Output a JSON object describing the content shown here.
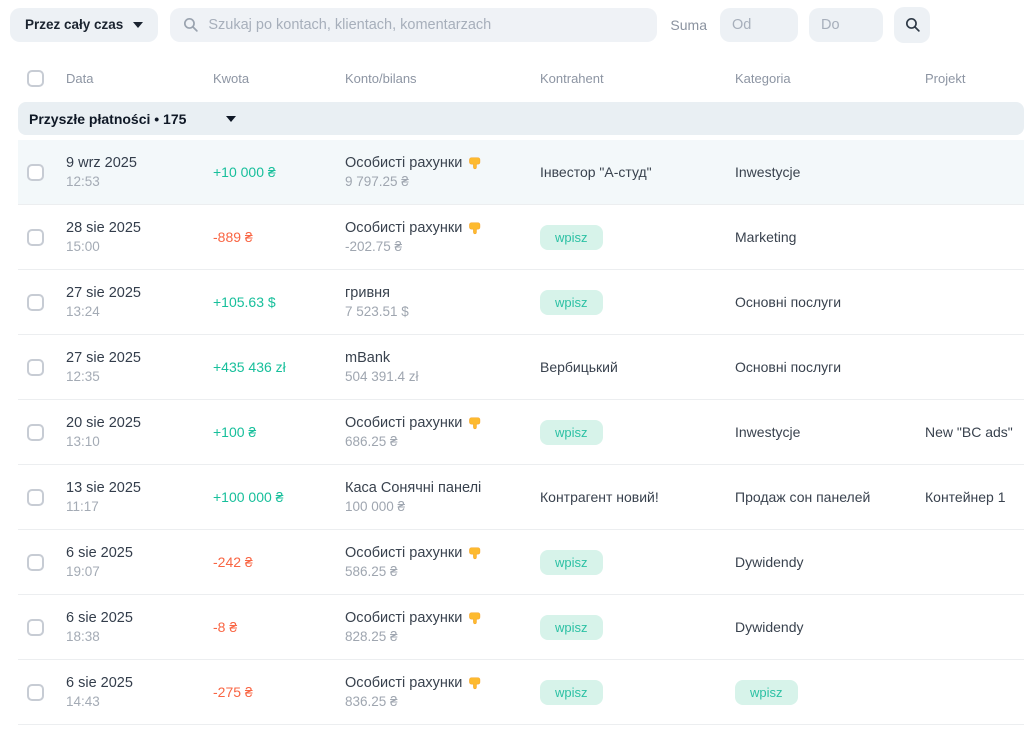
{
  "toolbar": {
    "period_button": "Przez cały czas",
    "search_placeholder": "Szukaj po kontach, klientach, komentarzach",
    "suma_label": "Suma",
    "od_placeholder": "Od",
    "do_placeholder": "Do"
  },
  "table": {
    "columns": [
      "Data",
      "Kwota",
      "Konto/bilans",
      "Kontrahent",
      "Kategoria",
      "Projekt"
    ],
    "group_header": "Przyszłe płatności • 175",
    "badge_label": "wpisz",
    "rows": [
      {
        "date": "9 wrz 2025",
        "time": "12:53",
        "amount": "+10 000 ₴",
        "sign": "pos",
        "account": "Особисті рахунки",
        "account_icon": "hand-pointing-down-icon",
        "balance": "9 797.25 ₴",
        "kontrahent": "Інвестор \"А-студ\"",
        "kategoria": "Inwestycje",
        "projekt": "",
        "highlight": true
      },
      {
        "date": "28 sie 2025",
        "time": "15:00",
        "amount": "-889 ₴",
        "sign": "neg",
        "account": "Особисті рахунки",
        "account_icon": "hand-pointing-down-icon",
        "balance": "-202.75 ₴",
        "kontrahent": null,
        "kategoria": "Marketing",
        "projekt": "",
        "highlight": false
      },
      {
        "date": "27 sie 2025",
        "time": "13:24",
        "amount": "+105.63 $",
        "sign": "pos",
        "account": "гривня",
        "account_icon": null,
        "balance": "7 523.51 $",
        "kontrahent": null,
        "kategoria": "Основні послуги",
        "projekt": "",
        "highlight": false
      },
      {
        "date": "27 sie 2025",
        "time": "12:35",
        "amount": "+435 436 zł",
        "sign": "pos",
        "account": "mBank",
        "account_icon": null,
        "balance": "504 391.4 zł",
        "kontrahent": "Вербицький",
        "kategoria": "Основні послуги",
        "projekt": "",
        "highlight": false
      },
      {
        "date": "20 sie 2025",
        "time": "13:10",
        "amount": "+100 ₴",
        "sign": "pos",
        "account": "Особисті рахунки",
        "account_icon": "hand-pointing-down-icon",
        "balance": "686.25 ₴",
        "kontrahent": null,
        "kategoria": "Inwestycje",
        "projekt": "New \"BC ads\"",
        "highlight": false
      },
      {
        "date": "13 sie 2025",
        "time": "11:17",
        "amount": "+100 000 ₴",
        "sign": "pos",
        "account": "Каса Сонячні панелі",
        "account_icon": null,
        "balance": "100 000 ₴",
        "kontrahent": "Контрагент новий!",
        "kategoria": "Продаж сон панелей",
        "projekt": "Контейнер 1",
        "highlight": false
      },
      {
        "date": "6 sie 2025",
        "time": "19:07",
        "amount": "-242 ₴",
        "sign": "neg",
        "account": "Особисті рахунки",
        "account_icon": "hand-pointing-down-icon",
        "balance": "586.25 ₴",
        "kontrahent": null,
        "kategoria": "Dywidendy",
        "projekt": "",
        "highlight": false
      },
      {
        "date": "6 sie 2025",
        "time": "18:38",
        "amount": "-8 ₴",
        "sign": "neg",
        "account": "Особисті рахунки",
        "account_icon": "hand-pointing-down-icon",
        "balance": "828.25 ₴",
        "kontrahent": null,
        "kategoria": "Dywidendy",
        "projekt": "",
        "highlight": false
      },
      {
        "date": "6 sie 2025",
        "time": "14:43",
        "amount": "-275 ₴",
        "sign": "neg",
        "account": "Особисті рахунки",
        "account_icon": "hand-pointing-down-icon",
        "balance": "836.25 ₴",
        "kontrahent": null,
        "kategoria": null,
        "projekt": "",
        "highlight": false
      }
    ]
  },
  "colors": {
    "positive": "#17bf9b",
    "negative": "#f96543",
    "badge_bg": "#d7f3ea",
    "badge_text": "#2cc1a4"
  }
}
